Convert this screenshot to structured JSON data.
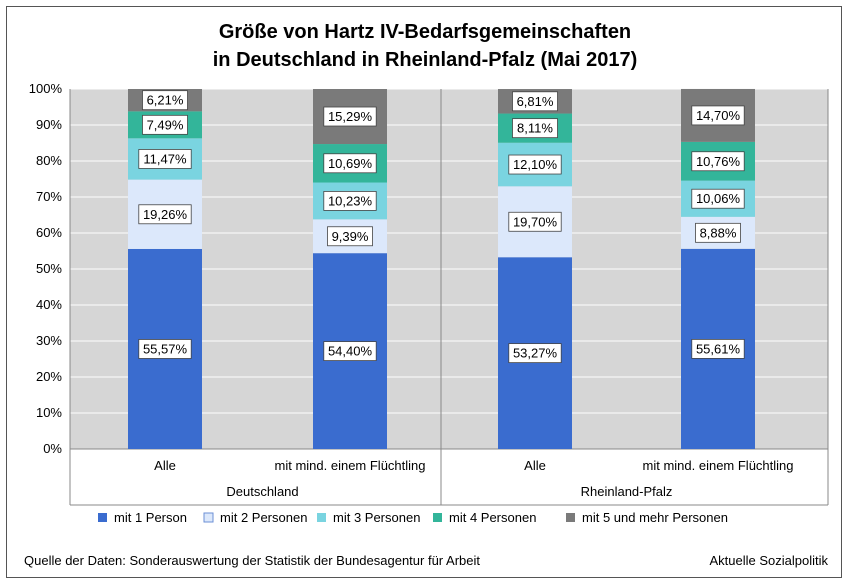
{
  "chart_data": {
    "type": "stacked-bar-100",
    "title": [
      "Größe von Hartz IV-Bedarfsgemeinschaften",
      "in Deutschland in Rheinland-Pfalz (Mai 2017)"
    ],
    "ylim": [
      0,
      100
    ],
    "y_ticks": [
      "0%",
      "10%",
      "20%",
      "30%",
      "40%",
      "50%",
      "60%",
      "70%",
      "80%",
      "90%",
      "100%"
    ],
    "groups": [
      "Deutschland",
      "Rheinland-Pfalz"
    ],
    "categories": [
      "Alle",
      "mit mind. einem Flüchtling",
      "Alle",
      "mit mind. einem Flüchtling"
    ],
    "series": [
      {
        "name": "mit 1 Person",
        "color": "#3a6ccf",
        "values": [
          55.57,
          54.4,
          53.27,
          55.61
        ],
        "labels": [
          "55,57%",
          "54,40%",
          "53,27%",
          "55,61%"
        ]
      },
      {
        "name": "mit 2 Personen",
        "color": "#dce8fb",
        "values": [
          19.26,
          9.39,
          19.7,
          8.88
        ],
        "labels": [
          "19,26%",
          "9,39%",
          "19,70%",
          "8,88%"
        ]
      },
      {
        "name": "mit 3 Personen",
        "color": "#7ad4e0",
        "values": [
          11.47,
          10.23,
          12.1,
          10.06
        ],
        "labels": [
          "11,47%",
          "10,23%",
          "12,10%",
          "10,06%"
        ]
      },
      {
        "name": "mit 4 Personen",
        "color": "#33b59a",
        "values": [
          7.49,
          10.69,
          8.11,
          10.76
        ],
        "labels": [
          "7,49%",
          "10,69%",
          "8,11%",
          "10,76%"
        ]
      },
      {
        "name": "mit 5 und mehr Personen",
        "color": "#7a7a7a",
        "values": [
          6.21,
          15.29,
          6.81,
          14.7
        ],
        "labels": [
          "6,21%",
          "15,29%",
          "6,81%",
          "14,70%"
        ]
      }
    ],
    "legend_position": "bottom",
    "plot_background": "#d6d6d6"
  },
  "footer": {
    "source": "Quelle der Daten: Sonderauswertung der Statistik der Bundesagentur für Arbeit",
    "credit": "Aktuelle Sozialpolitik"
  }
}
